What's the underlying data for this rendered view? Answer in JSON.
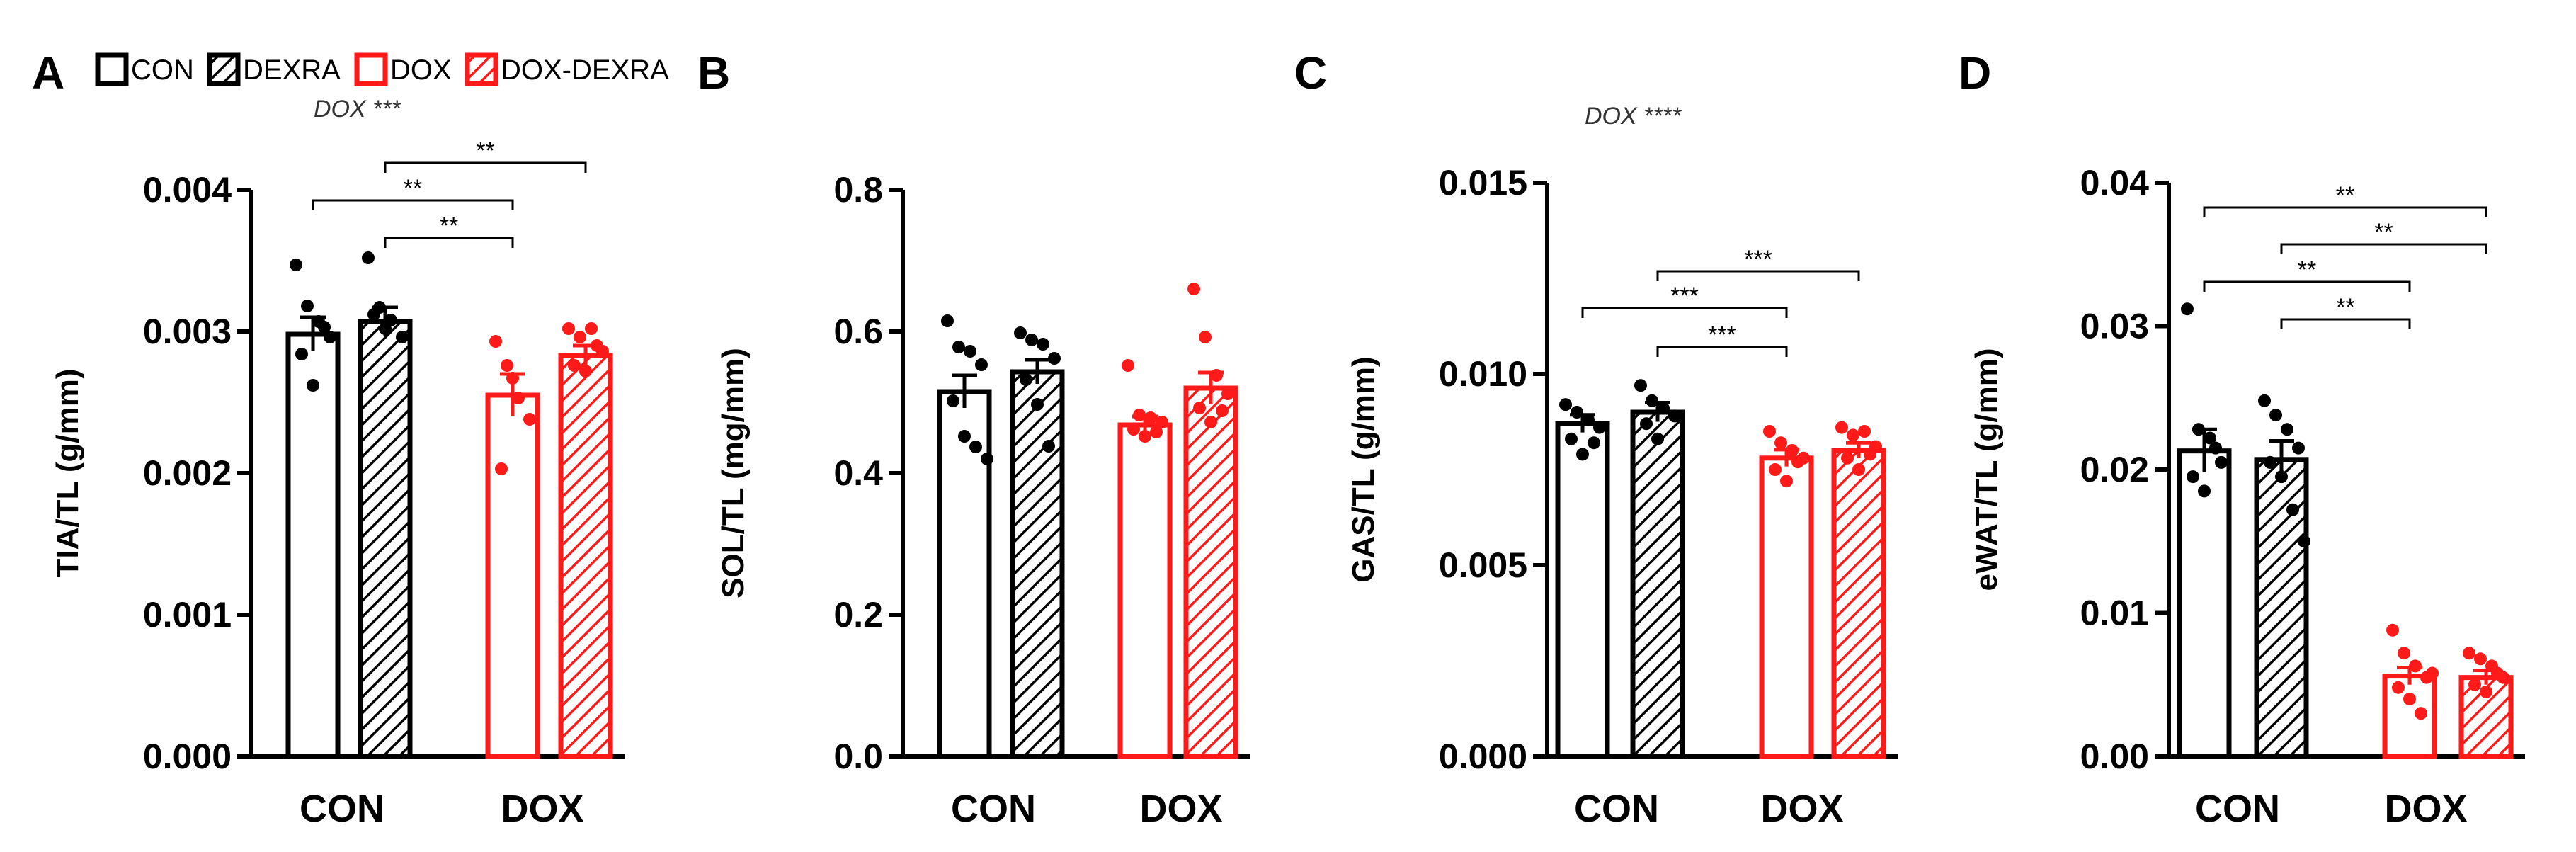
{
  "colors": {
    "con": "#000000",
    "dox": "#ff1a1a",
    "text": "#000000",
    "annotation": "#333333"
  },
  "legend": {
    "items": [
      {
        "label": "CON",
        "color": "#000000",
        "hatch": false
      },
      {
        "label": "DEXRA",
        "color": "#000000",
        "hatch": true
      },
      {
        "label": "DOX",
        "color": "#ff1a1a",
        "hatch": false
      },
      {
        "label": "DOX-DEXRA",
        "color": "#ff1a1a",
        "hatch": true
      }
    ]
  },
  "chart_data": [
    {
      "type": "bar",
      "panel": "A",
      "ylabel": "TIA/TL (g/mm)",
      "ylim": [
        0,
        0.004
      ],
      "yticks": [
        "0.000",
        "0.001",
        "0.002",
        "0.003",
        "0.004"
      ],
      "categories": [
        "CON",
        "DOX"
      ],
      "annotation": "DOX ***",
      "series": [
        {
          "name": "CON",
          "group": "CON",
          "mean": 0.00298,
          "sem": 0.00012,
          "points": [
            0.00347,
            0.00318,
            0.00307,
            0.00296,
            0.00284,
            0.00262,
            0.00303
          ]
        },
        {
          "name": "DEXRA",
          "group": "CON",
          "mean": 0.00307,
          "sem": 0.0001,
          "points": [
            0.00352,
            0.00317,
            0.00308,
            0.00296,
            0.00312,
            0.00302
          ]
        },
        {
          "name": "DOX",
          "group": "DOX",
          "mean": 0.00255,
          "sem": 0.00015,
          "points": [
            0.00293,
            0.00276,
            0.00253,
            0.00238,
            0.00203,
            0.00267
          ]
        },
        {
          "name": "DOX-DEXRA",
          "group": "DOX",
          "mean": 0.00283,
          "sem": 7e-05,
          "points": [
            0.00302,
            0.00296,
            0.00302,
            0.00286,
            0.00276,
            0.00272,
            0.0029
          ]
        }
      ],
      "comparisons": [
        {
          "from": 1,
          "to": 3,
          "label": "**"
        },
        {
          "from": 0,
          "to": 2,
          "label": "**"
        },
        {
          "from": 1,
          "to": 2,
          "label": "**"
        }
      ]
    },
    {
      "type": "bar",
      "panel": "B",
      "ylabel": "SOL/TL (mg/mm)",
      "ylim": [
        0,
        0.8
      ],
      "yticks": [
        "0.0",
        "0.2",
        "0.4",
        "0.6",
        "0.8"
      ],
      "categories": [
        "CON",
        "DOX"
      ],
      "annotation": "",
      "series": [
        {
          "name": "CON",
          "group": "CON",
          "mean": 0.515,
          "sem": 0.023,
          "points": [
            0.615,
            0.578,
            0.572,
            0.553,
            0.502,
            0.452,
            0.437,
            0.42
          ]
        },
        {
          "name": "DEXRA",
          "group": "CON",
          "mean": 0.543,
          "sem": 0.017,
          "points": [
            0.598,
            0.588,
            0.582,
            0.562,
            0.532,
            0.497,
            0.438
          ]
        },
        {
          "name": "DOX",
          "group": "DOX",
          "mean": 0.468,
          "sem": 0.012,
          "points": [
            0.552,
            0.482,
            0.478,
            0.472,
            0.462,
            0.452,
            0.458
          ]
        },
        {
          "name": "DOX-DEXRA",
          "group": "DOX",
          "mean": 0.52,
          "sem": 0.022,
          "points": [
            0.66,
            0.592,
            0.538,
            0.512,
            0.492,
            0.472,
            0.488
          ]
        }
      ],
      "comparisons": []
    },
    {
      "type": "bar",
      "panel": "C",
      "ylabel": "GAS/TL (g/mm)",
      "ylim": [
        0,
        0.015
      ],
      "yticks": [
        "0.000",
        "0.005",
        "0.010",
        "0.015"
      ],
      "categories": [
        "CON",
        "DOX"
      ],
      "annotation": "DOX ****",
      "series": [
        {
          "name": "CON",
          "group": "CON",
          "mean": 0.0087,
          "sem": 0.00023,
          "points": [
            0.0092,
            0.009,
            0.0088,
            0.0086,
            0.0083,
            0.0079,
            0.0082
          ]
        },
        {
          "name": "DEXRA",
          "group": "CON",
          "mean": 0.009,
          "sem": 0.00025,
          "points": [
            0.0097,
            0.0093,
            0.0091,
            0.0089,
            0.0087,
            0.0083
          ]
        },
        {
          "name": "DOX",
          "group": "DOX",
          "mean": 0.0078,
          "sem": 0.00022,
          "points": [
            0.0085,
            0.0082,
            0.008,
            0.0078,
            0.0075,
            0.0072,
            0.0077
          ]
        },
        {
          "name": "DOX-DEXRA",
          "group": "DOX",
          "mean": 0.008,
          "sem": 0.0002,
          "points": [
            0.0086,
            0.0084,
            0.0085,
            0.0081,
            0.0078,
            0.0075,
            0.0079
          ]
        }
      ],
      "comparisons": [
        {
          "from": 1,
          "to": 3,
          "label": "***"
        },
        {
          "from": 0,
          "to": 2,
          "label": "***"
        },
        {
          "from": 1,
          "to": 2,
          "label": "***"
        }
      ]
    },
    {
      "type": "bar",
      "panel": "D",
      "ylabel": "eWAT/TL (g/mm)",
      "ylim": [
        0,
        0.04
      ],
      "yticks": [
        "0.00",
        "0.01",
        "0.02",
        "0.03",
        "0.04"
      ],
      "categories": [
        "CON",
        "DOX"
      ],
      "annotation": "",
      "series": [
        {
          "name": "CON",
          "group": "CON",
          "mean": 0.0213,
          "sem": 0.0015,
          "points": [
            0.0312,
            0.0228,
            0.0222,
            0.0205,
            0.0195,
            0.0185,
            0.0215
          ]
        },
        {
          "name": "DEXRA",
          "group": "CON",
          "mean": 0.0207,
          "sem": 0.0013,
          "points": [
            0.0248,
            0.0238,
            0.0228,
            0.0215,
            0.0205,
            0.0195,
            0.0172,
            0.015
          ]
        },
        {
          "name": "DOX",
          "group": "DOX",
          "mean": 0.0056,
          "sem": 0.0006,
          "points": [
            0.0088,
            0.0072,
            0.0063,
            0.0055,
            0.0048,
            0.004,
            0.003,
            0.0058
          ]
        },
        {
          "name": "DOX-DEXRA",
          "group": "DOX",
          "mean": 0.0055,
          "sem": 0.0005,
          "points": [
            0.0072,
            0.0068,
            0.0063,
            0.0055,
            0.005,
            0.0045,
            0.0058
          ]
        }
      ],
      "comparisons": [
        {
          "from": 0,
          "to": 3,
          "label": "**"
        },
        {
          "from": 1,
          "to": 3,
          "label": "**"
        },
        {
          "from": 0,
          "to": 2,
          "label": "**"
        },
        {
          "from": 1,
          "to": 2,
          "label": "**"
        }
      ]
    }
  ]
}
